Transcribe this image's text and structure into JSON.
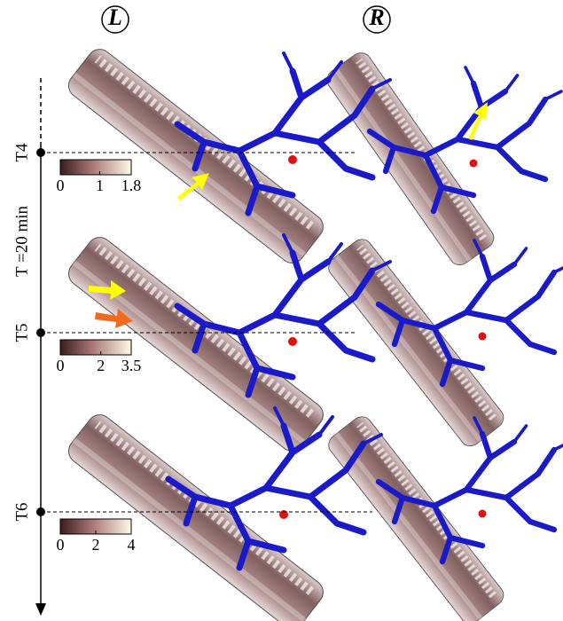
{
  "columns": [
    "L",
    "R"
  ],
  "time_axis": {
    "label": "T =20 min",
    "steps": [
      "T4",
      "T5",
      "T6"
    ]
  },
  "colorbars": [
    {
      "ticks": [
        0,
        1,
        1.8
      ]
    },
    {
      "ticks": [
        0,
        2,
        3.5
      ]
    },
    {
      "ticks": [
        0,
        2,
        4
      ]
    }
  ]
}
